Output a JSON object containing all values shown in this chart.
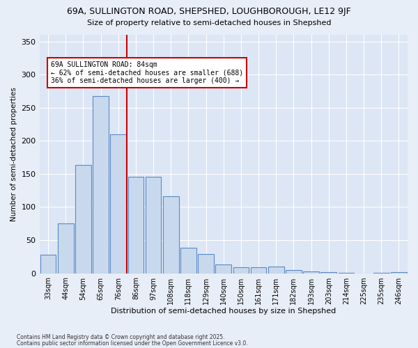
{
  "title1": "69A, SULLINGTON ROAD, SHEPSHED, LOUGHBOROUGH, LE12 9JF",
  "title2": "Size of property relative to semi-detached houses in Shepshed",
  "xlabel": "Distribution of semi-detached houses by size in Shepshed",
  "ylabel": "Number of semi-detached properties",
  "categories": [
    "33sqm",
    "44sqm",
    "54sqm",
    "65sqm",
    "76sqm",
    "86sqm",
    "97sqm",
    "108sqm",
    "118sqm",
    "129sqm",
    "140sqm",
    "150sqm",
    "161sqm",
    "171sqm",
    "182sqm",
    "193sqm",
    "203sqm",
    "214sqm",
    "225sqm",
    "235sqm",
    "246sqm"
  ],
  "values": [
    28,
    75,
    163,
    268,
    210,
    146,
    146,
    116,
    38,
    29,
    13,
    9,
    9,
    10,
    5,
    3,
    2,
    1,
    0,
    1,
    2
  ],
  "bar_color": "#c9d9ed",
  "bar_edge_color": "#5a8ac6",
  "annotation_text_line1": "69A SULLINGTON ROAD: 84sqm",
  "annotation_text_line2": "← 62% of semi-detached houses are smaller (688)",
  "annotation_text_line3": "36% of semi-detached houses are larger (400) →",
  "annotation_box_color": "#ffffff",
  "annotation_box_edge_color": "#cc0000",
  "vline_color": "#cc0000",
  "vline_x_index": 4,
  "footer1": "Contains HM Land Registry data © Crown copyright and database right 2025.",
  "footer2": "Contains public sector information licensed under the Open Government Licence v3.0.",
  "ylim": [
    0,
    360
  ],
  "background_color": "#e8eef7",
  "plot_background": "#dce6f5",
  "title1_fontsize": 9,
  "title2_fontsize": 8.5
}
